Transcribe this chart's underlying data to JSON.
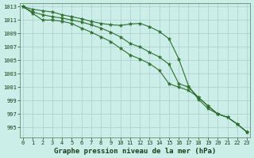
{
  "x": [
    0,
    1,
    2,
    3,
    4,
    5,
    6,
    7,
    8,
    9,
    10,
    11,
    12,
    13,
    14,
    15,
    16,
    17,
    18,
    19,
    20,
    21,
    22,
    23
  ],
  "line1": [
    1013,
    1012.6,
    1012.4,
    1012.2,
    1011.8,
    1011.5,
    1011.2,
    1010.8,
    1010.5,
    1010.3,
    1010.2,
    1010.4,
    1010.5,
    1010.0,
    1009.3,
    1008.2,
    1005.2,
    1001.2,
    999.2,
    997.8,
    997.0,
    996.5,
    995.5,
    994.3
  ],
  "line2": [
    1013,
    1012.2,
    1011.8,
    1011.5,
    1011.3,
    1011.0,
    1010.7,
    1010.3,
    1009.8,
    1009.2,
    1008.5,
    1007.5,
    1007.0,
    1006.2,
    1005.5,
    1004.4,
    1001.5,
    1001.0,
    999.5,
    998.2,
    997.0,
    996.5,
    995.5,
    994.3
  ],
  "line3": [
    1013,
    1012.0,
    1011.0,
    1011.0,
    1010.8,
    1010.5,
    1009.8,
    1009.2,
    1008.5,
    1007.8,
    1006.8,
    1005.8,
    1005.2,
    1004.5,
    1003.5,
    1001.5,
    1001.0,
    1000.5,
    999.5,
    998.2,
    997.0,
    996.5,
    995.5,
    994.3
  ],
  "bg_color": "#cceee8",
  "grid_color": "#aacccc",
  "line_color": "#2d6e2d",
  "marker_color": "#2d6e2d",
  "xlabel": "Graphe pression niveau de la mer (hPa)",
  "ylim_min": 993.5,
  "ylim_max": 1013.5,
  "yticks": [
    995,
    997,
    999,
    1001,
    1003,
    1005,
    1007,
    1009,
    1011,
    1013
  ],
  "xticks": [
    0,
    1,
    2,
    3,
    4,
    5,
    6,
    7,
    8,
    9,
    10,
    11,
    12,
    13,
    14,
    15,
    16,
    17,
    18,
    19,
    20,
    21,
    22,
    23
  ],
  "xlabel_fontsize": 6.5,
  "tick_fontsize": 5.0,
  "marker_size": 2.0,
  "line_width": 0.8
}
